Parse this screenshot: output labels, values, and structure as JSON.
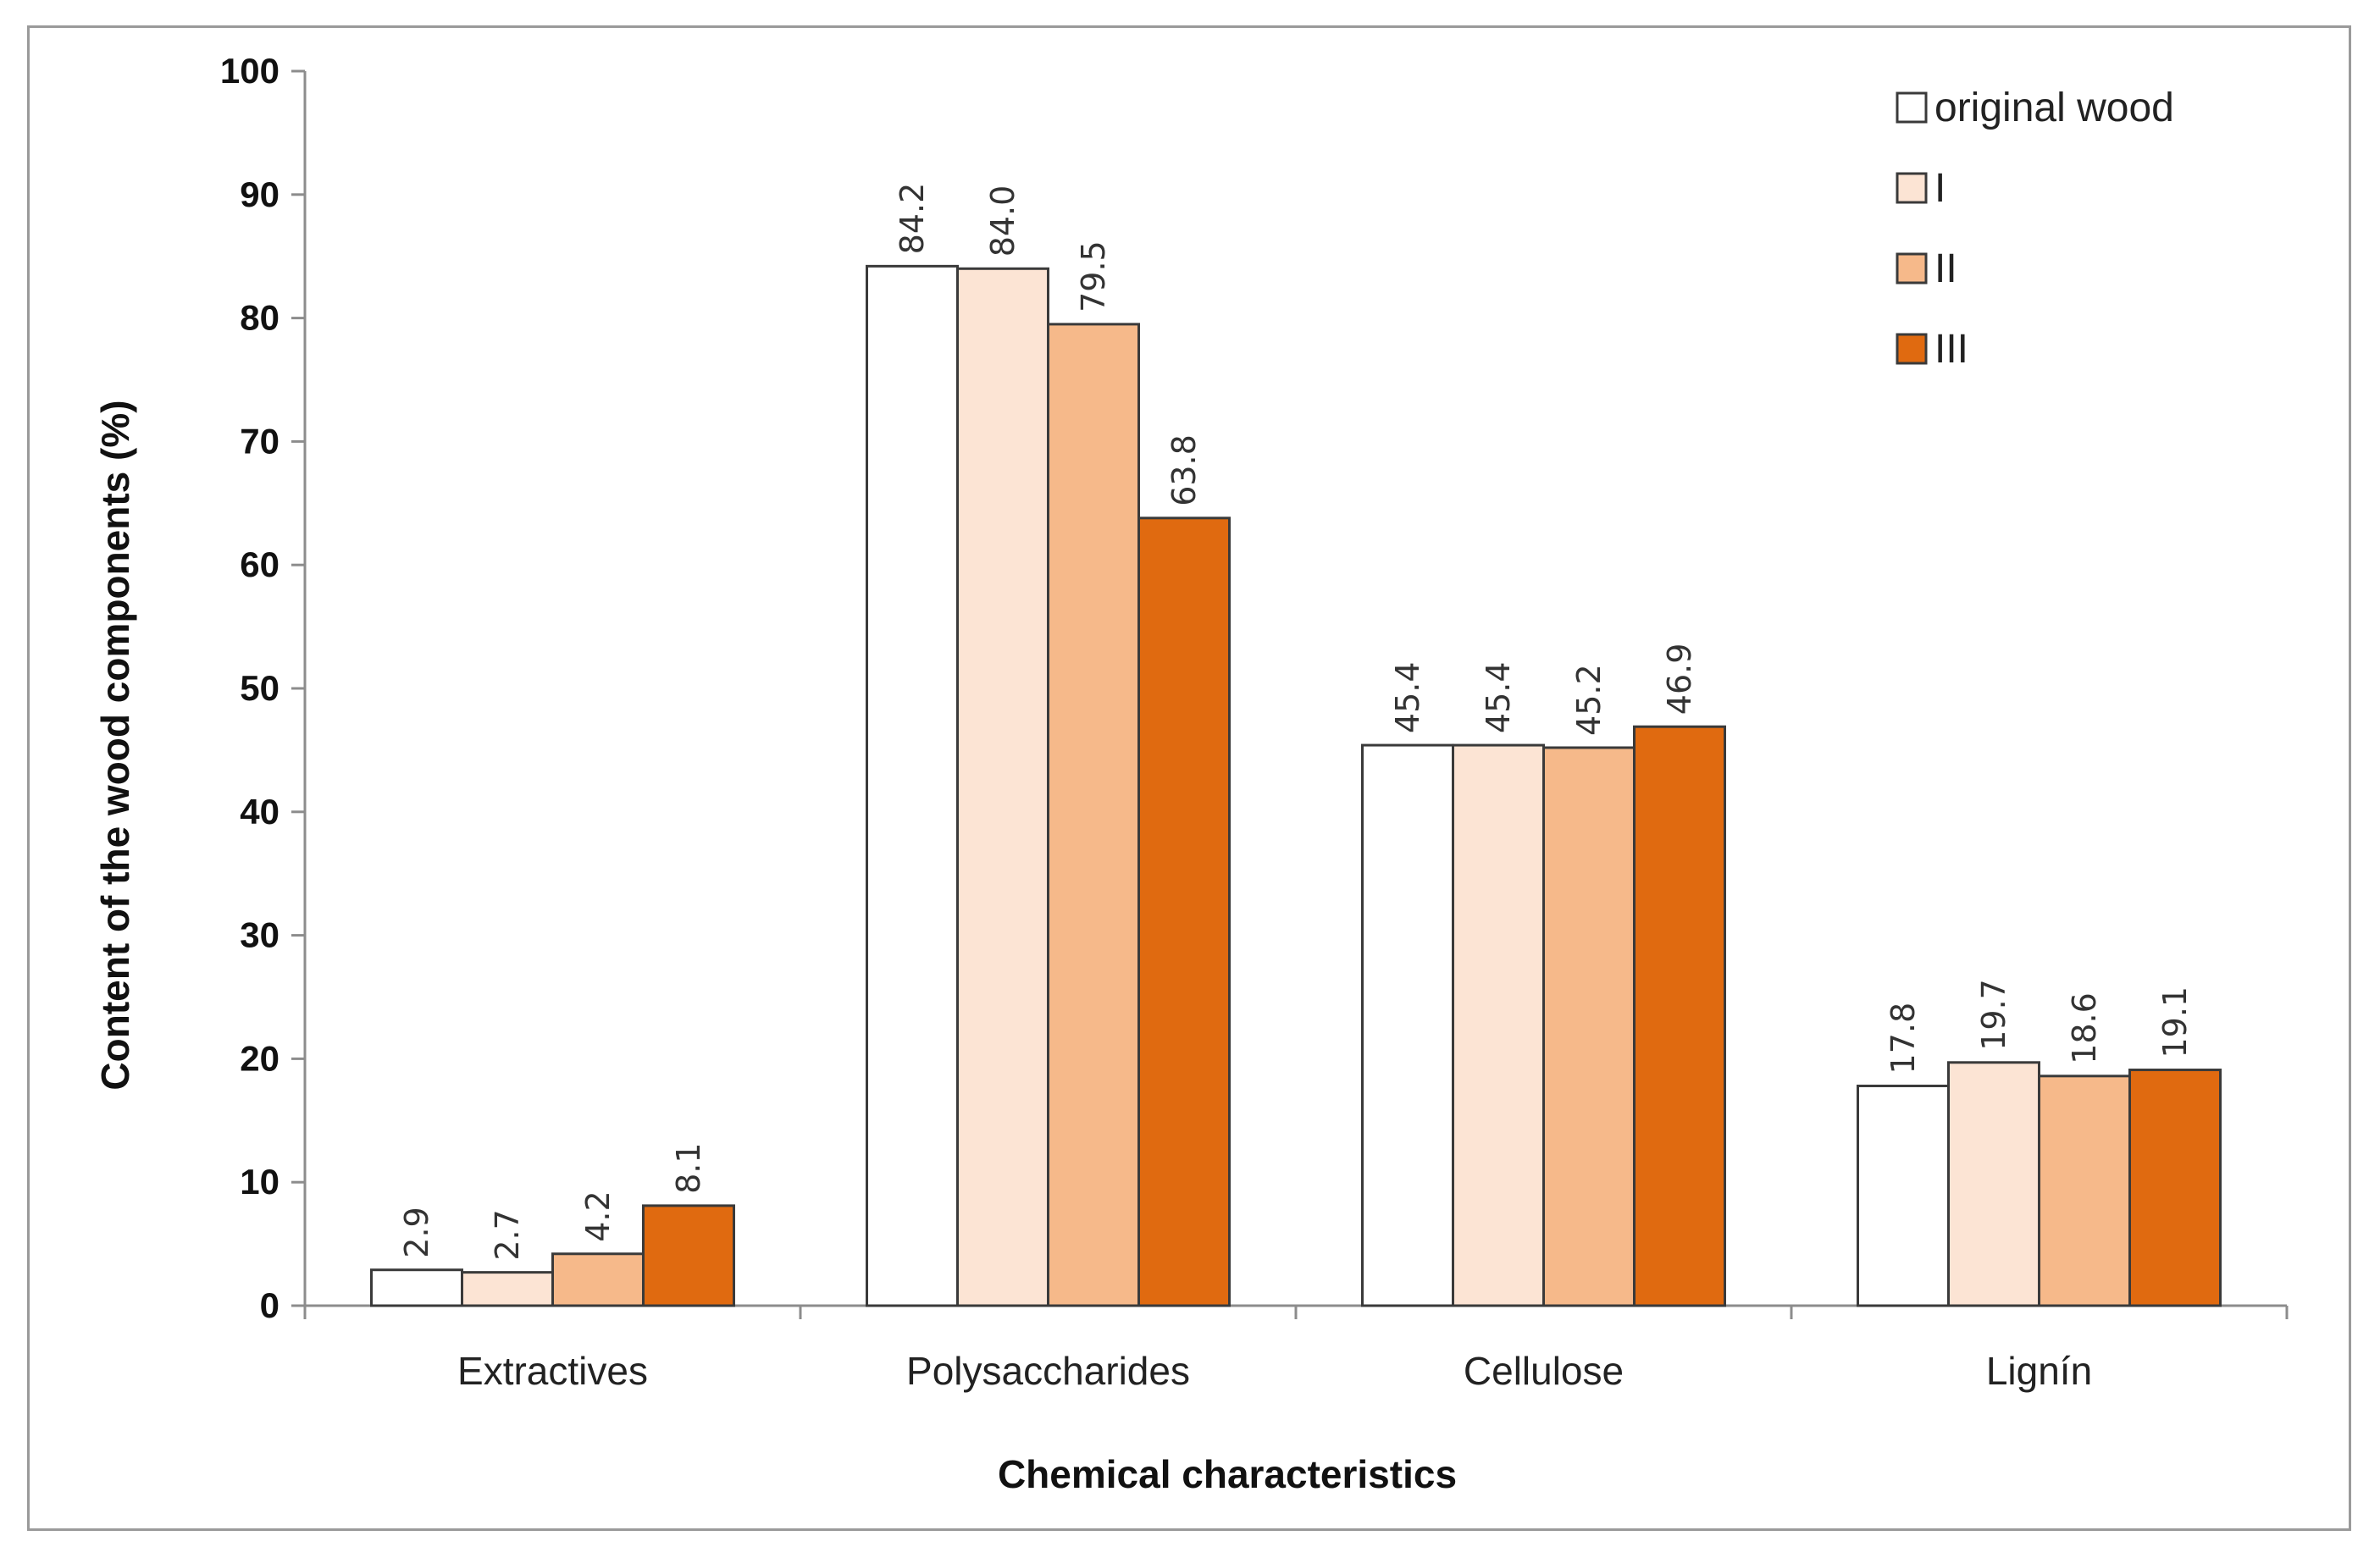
{
  "chart_data": {
    "type": "bar",
    "title": "",
    "xlabel": "Chemical characteristics",
    "ylabel": "Content of  the wood components   (%)",
    "ylim": [
      0,
      100
    ],
    "yticks": [
      0,
      10,
      20,
      30,
      40,
      50,
      60,
      70,
      80,
      90,
      100
    ],
    "categories": [
      "Extractives",
      "Polysaccharides",
      "Cellulose",
      "Lignín"
    ],
    "series": [
      {
        "name": "original wood",
        "color": "#ffffff",
        "values": [
          2.9,
          84.2,
          45.4,
          17.8
        ],
        "labels": [
          "2.9",
          "84.2",
          "45.4",
          "17.8"
        ]
      },
      {
        "name": "I",
        "color": "#fce4d4",
        "values": [
          2.7,
          84.0,
          45.4,
          19.7
        ],
        "labels": [
          "2.7",
          "84.0",
          "45.4",
          "19.7"
        ]
      },
      {
        "name": "II",
        "color": "#f6b98a",
        "values": [
          4.2,
          79.5,
          45.2,
          18.6
        ],
        "labels": [
          "4.2",
          "79.5",
          "45.2",
          "18.6"
        ]
      },
      {
        "name": "III",
        "color": "#e06a10",
        "values": [
          8.1,
          63.8,
          46.9,
          19.1
        ],
        "labels": [
          "8.1",
          "63.8",
          "46.9",
          "19.1"
        ]
      }
    ],
    "legend_position": "top-right",
    "grid": false
  }
}
